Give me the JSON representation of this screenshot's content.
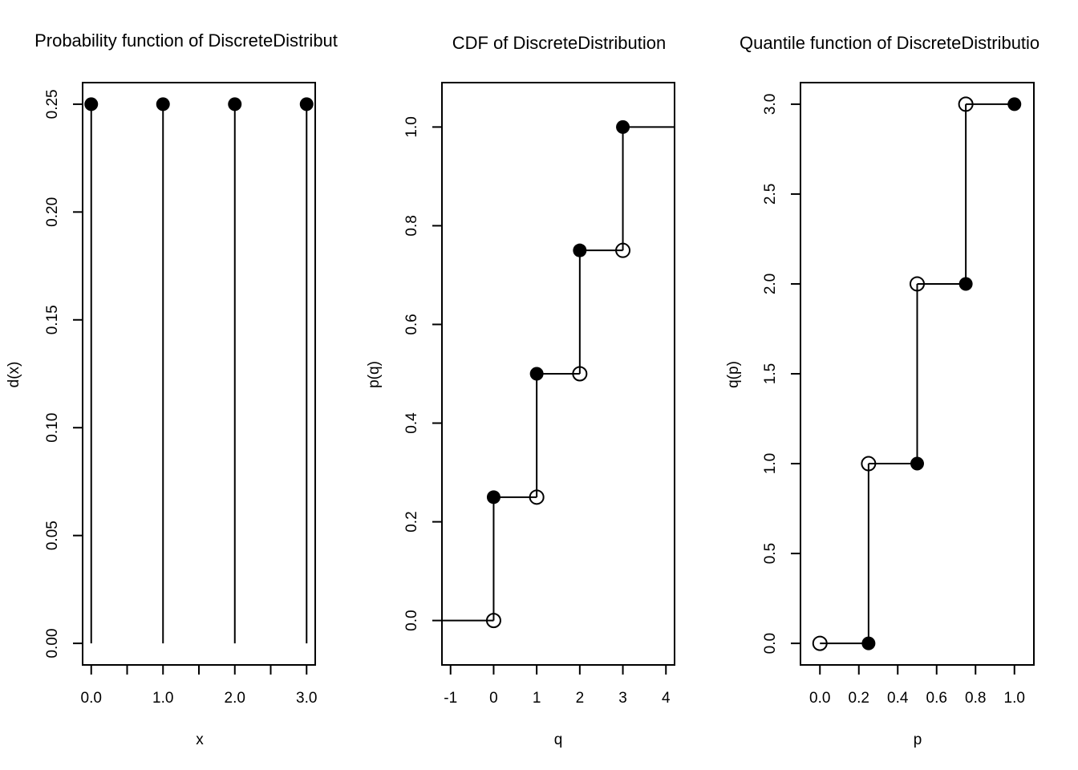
{
  "chart_data": [
    {
      "type": "scatter",
      "style": "stem",
      "title": "Probability function of DiscreteDistribut",
      "xlabel": "x",
      "ylabel": "d(x)",
      "xlim": [
        -0.12,
        3.12
      ],
      "ylim": [
        -0.01,
        0.26
      ],
      "xticks": [
        0,
        0.5,
        1,
        1.5,
        2,
        2.5,
        3
      ],
      "xtick_labels": [
        "0.0",
        "",
        "1.0",
        "",
        "2.0",
        "",
        "3.0"
      ],
      "yticks": [
        0,
        0.05,
        0.1,
        0.15,
        0.2,
        0.25
      ],
      "ytick_labels": [
        "0.00",
        "0.05",
        "0.10",
        "0.15",
        "0.20",
        "0.25"
      ],
      "x": [
        0,
        1,
        2,
        3
      ],
      "y": [
        0.25,
        0.25,
        0.25,
        0.25
      ],
      "color": "#000000"
    },
    {
      "type": "line",
      "style": "step",
      "title": "CDF of DiscreteDistribution",
      "xlabel": "q",
      "ylabel": "p(q)",
      "xlim": [
        -1.2,
        4.2
      ],
      "ylim": [
        -0.09,
        1.09
      ],
      "xticks": [
        -1,
        0,
        1,
        2,
        3,
        4
      ],
      "xtick_labels": [
        "-1",
        "0",
        "1",
        "2",
        "3",
        "4"
      ],
      "yticks": [
        0,
        0.2,
        0.4,
        0.6,
        0.8,
        1.0
      ],
      "ytick_labels": [
        "0.0",
        "0.2",
        "0.4",
        "0.6",
        "0.8",
        "1.0"
      ],
      "segments": [
        {
          "x0": -1.2,
          "x1": 0,
          "y": 0
        },
        {
          "x0": 0,
          "x1": 1,
          "y": 0.25
        },
        {
          "x0": 1,
          "x1": 2,
          "y": 0.5
        },
        {
          "x0": 2,
          "x1": 3,
          "y": 0.75
        },
        {
          "x0": 3,
          "x1": 4.2,
          "y": 1.0
        }
      ],
      "jumps": [
        {
          "x": 0,
          "y0": 0,
          "y1": 0.25
        },
        {
          "x": 1,
          "y0": 0.25,
          "y1": 0.5
        },
        {
          "x": 2,
          "y0": 0.5,
          "y1": 0.75
        },
        {
          "x": 3,
          "y0": 0.75,
          "y1": 1.0
        }
      ],
      "open_points": [
        [
          0,
          0
        ],
        [
          1,
          0.25
        ],
        [
          2,
          0.5
        ],
        [
          3,
          0.75
        ]
      ],
      "closed_points": [
        [
          0,
          0.25
        ],
        [
          1,
          0.5
        ],
        [
          2,
          0.75
        ],
        [
          3,
          1.0
        ]
      ],
      "color": "#000000"
    },
    {
      "type": "line",
      "style": "step",
      "title": "Quantile function of DiscreteDistributio",
      "xlabel": "p",
      "ylabel": "q(p)",
      "xlim": [
        -0.1,
        1.1
      ],
      "ylim": [
        -0.12,
        3.12
      ],
      "xticks": [
        0,
        0.2,
        0.4,
        0.6,
        0.8,
        1.0
      ],
      "xtick_labels": [
        "0.0",
        "0.2",
        "0.4",
        "0.6",
        "0.8",
        "1.0"
      ],
      "yticks": [
        0,
        0.5,
        1,
        1.5,
        2,
        2.5,
        3
      ],
      "ytick_labels": [
        "0.0",
        "0.5",
        "1.0",
        "1.5",
        "2.0",
        "2.5",
        "3.0"
      ],
      "segments": [
        {
          "x0": 0,
          "x1": 0.25,
          "y": 0
        },
        {
          "x0": 0.25,
          "x1": 0.5,
          "y": 1
        },
        {
          "x0": 0.5,
          "x1": 0.75,
          "y": 2
        },
        {
          "x0": 0.75,
          "x1": 1.0,
          "y": 3
        }
      ],
      "jumps": [
        {
          "x": 0.25,
          "y0": 0,
          "y1": 1
        },
        {
          "x": 0.5,
          "y0": 1,
          "y1": 2
        },
        {
          "x": 0.75,
          "y0": 2,
          "y1": 3
        }
      ],
      "open_points": [
        [
          0,
          0
        ],
        [
          0.25,
          1
        ],
        [
          0.5,
          2
        ],
        [
          0.75,
          3
        ]
      ],
      "closed_points": [
        [
          0.25,
          0
        ],
        [
          0.5,
          1
        ],
        [
          0.75,
          2
        ],
        [
          1.0,
          3
        ]
      ],
      "color": "#000000"
    }
  ]
}
